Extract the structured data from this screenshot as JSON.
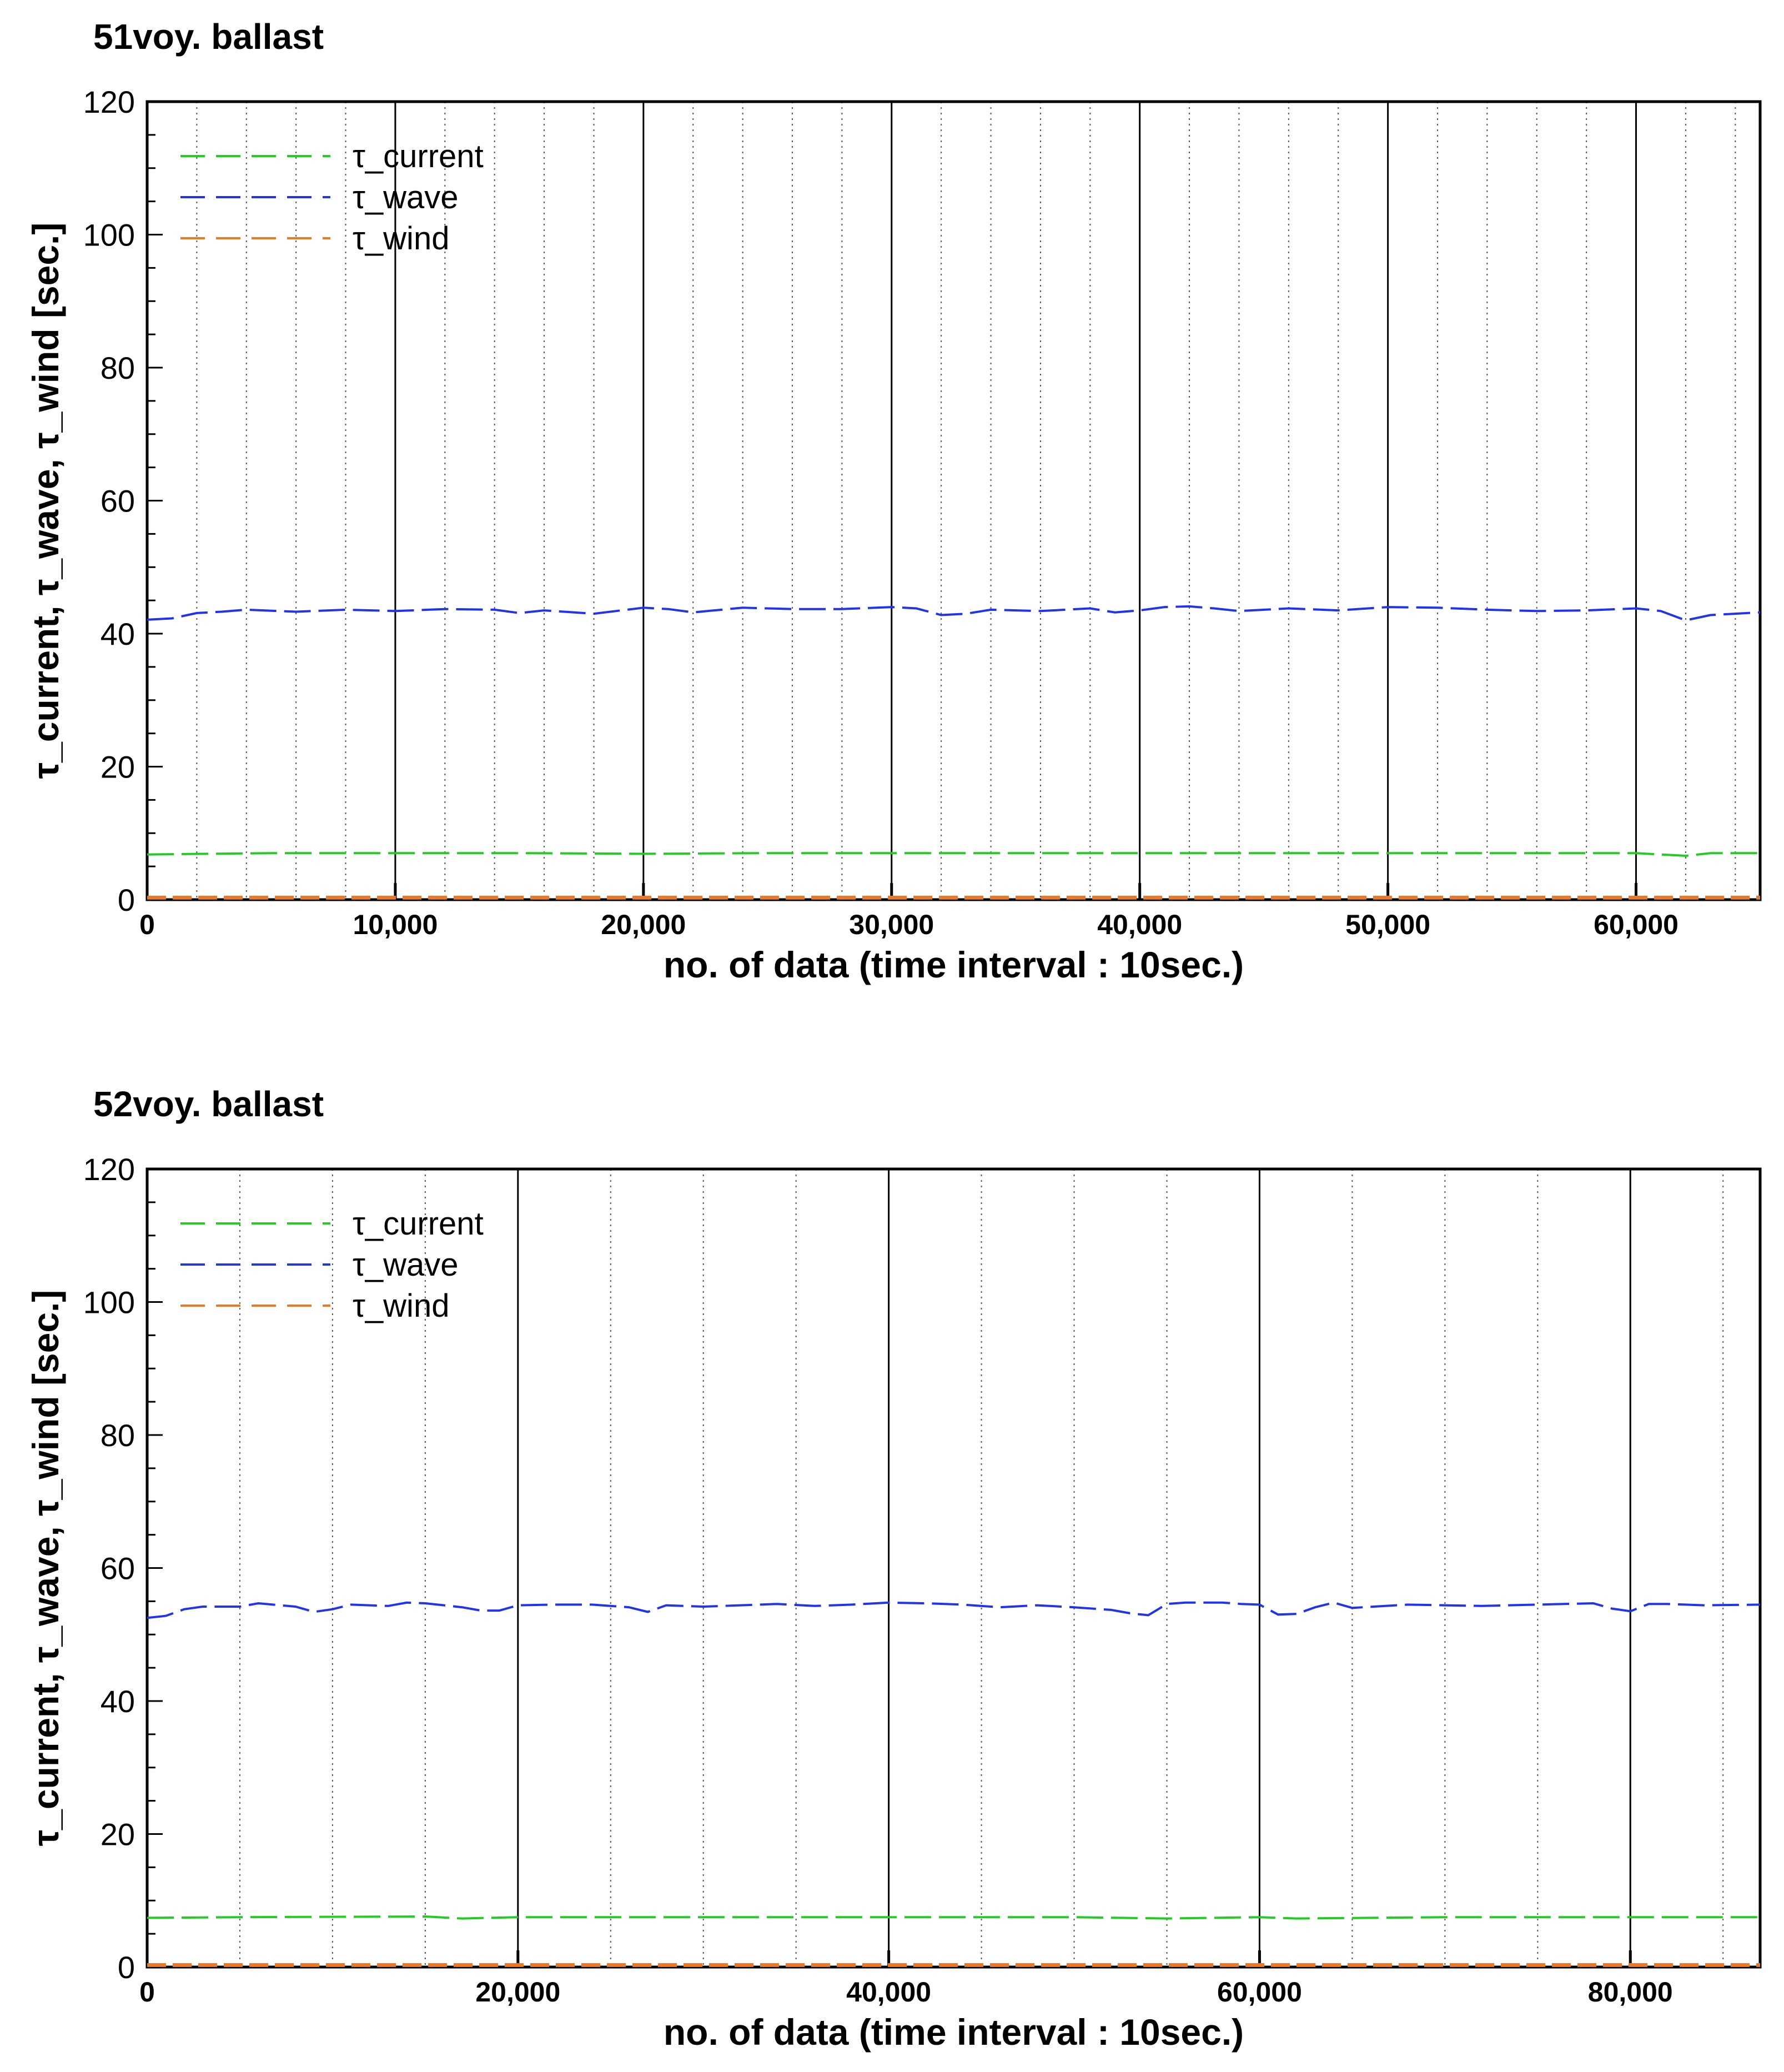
{
  "chart_data": [
    {
      "type": "line",
      "title": "51voy. ballast",
      "xlabel": "no. of data (time interval : 10sec.)",
      "ylabel": "τ_current, τ_wave, τ_wind [sec.]",
      "xlim": [
        0,
        65000
      ],
      "ylim": [
        0,
        120
      ],
      "x_major_ticks": [
        0,
        10000,
        20000,
        30000,
        40000,
        50000,
        60000
      ],
      "x_tick_labels": [
        "0",
        "10,000",
        "20,000",
        "30,000",
        "40,000",
        "50,000",
        "60,000"
      ],
      "x_minor_step": 2000,
      "y_ticks": [
        0,
        20,
        40,
        60,
        80,
        100,
        120
      ],
      "y_tick_labels": [
        "0",
        "20",
        "40",
        "60",
        "80",
        "100",
        "120"
      ],
      "y_minor_step": 5,
      "grid": "vertical",
      "legend_position": "top-left",
      "series": [
        {
          "name": "τ_current",
          "color": "#22cc22",
          "x": [
            0,
            5000,
            10000,
            15000,
            20000,
            25000,
            30000,
            35000,
            40000,
            45000,
            50000,
            55000,
            60000,
            62000,
            63000,
            65000
          ],
          "y": [
            6.8,
            7.0,
            7.0,
            7.0,
            6.9,
            7.0,
            7.0,
            7.0,
            7.0,
            7.0,
            7.0,
            7.0,
            7.0,
            6.6,
            7.0,
            7.0
          ]
        },
        {
          "name": "τ_wave",
          "color": "#2233ee",
          "x": [
            0,
            1000,
            2000,
            3000,
            4000,
            6000,
            8000,
            10000,
            12000,
            14000,
            15000,
            16000,
            18000,
            20000,
            21000,
            22000,
            24000,
            26000,
            28000,
            30000,
            31000,
            32000,
            33000,
            34000,
            36000,
            38000,
            39000,
            40000,
            41000,
            42000,
            43000,
            44000,
            46000,
            48000,
            50000,
            52000,
            54000,
            56000,
            58000,
            60000,
            61000,
            62000,
            63000,
            65000
          ],
          "y": [
            42.1,
            42.3,
            43.1,
            43.3,
            43.6,
            43.3,
            43.6,
            43.4,
            43.7,
            43.6,
            43.1,
            43.5,
            43.0,
            43.9,
            43.7,
            43.2,
            43.9,
            43.7,
            43.7,
            44.0,
            43.8,
            42.8,
            43.0,
            43.6,
            43.4,
            43.8,
            43.2,
            43.5,
            44.0,
            44.1,
            43.8,
            43.4,
            43.8,
            43.5,
            44.0,
            43.9,
            43.6,
            43.4,
            43.5,
            43.8,
            43.4,
            42.0,
            42.8,
            43.2
          ]
        },
        {
          "name": "τ_wind",
          "color": "#ee7722",
          "x": [
            0,
            65000
          ],
          "y": [
            0.3,
            0.3
          ]
        }
      ]
    },
    {
      "type": "line",
      "title": "52voy. ballast",
      "xlabel": "no. of data (time interval : 10sec.)",
      "ylabel": "τ_current, τ_wave, τ_wind [sec.]",
      "xlim": [
        0,
        87000
      ],
      "ylim": [
        0,
        120
      ],
      "x_major_ticks": [
        0,
        20000,
        40000,
        60000,
        80000
      ],
      "x_tick_labels": [
        "0",
        "20,000",
        "40,000",
        "60,000",
        "80,000"
      ],
      "x_minor_step": 5000,
      "y_ticks": [
        0,
        20,
        40,
        60,
        80,
        100,
        120
      ],
      "y_tick_labels": [
        "0",
        "20",
        "40",
        "60",
        "80",
        "100",
        "120"
      ],
      "y_minor_step": 5,
      "grid": "vertical",
      "legend_position": "top-left",
      "series": [
        {
          "name": "τ_current",
          "color": "#22cc22",
          "x": [
            0,
            5000,
            15000,
            17000,
            20000,
            30000,
            40000,
            50000,
            55000,
            60000,
            62000,
            70000,
            80000,
            87000
          ],
          "y": [
            7.4,
            7.5,
            7.6,
            7.3,
            7.5,
            7.5,
            7.5,
            7.5,
            7.3,
            7.5,
            7.3,
            7.5,
            7.5,
            7.5
          ],
          "name_note": ""
        },
        {
          "name": "τ_wave",
          "color": "#2233ee",
          "x": [
            0,
            1000,
            2000,
            3000,
            5000,
            6000,
            8000,
            9000,
            10000,
            11000,
            13000,
            14000,
            15000,
            17000,
            18000,
            19000,
            20000,
            22000,
            24000,
            26000,
            27000,
            28000,
            30000,
            34000,
            36000,
            38000,
            40000,
            42000,
            44000,
            46000,
            48000,
            50000,
            52000,
            53000,
            54000,
            55000,
            56000,
            58000,
            59000,
            60000,
            61000,
            62000,
            63000,
            64000,
            65000,
            68000,
            70000,
            72000,
            75000,
            78000,
            79000,
            80000,
            81000,
            82000,
            84000,
            87000
          ],
          "y": [
            52.5,
            52.8,
            53.8,
            54.2,
            54.2,
            54.7,
            54.2,
            53.4,
            53.8,
            54.5,
            54.3,
            54.8,
            54.7,
            54.1,
            53.6,
            53.6,
            54.4,
            54.5,
            54.5,
            54.1,
            53.4,
            54.4,
            54.2,
            54.6,
            54.3,
            54.5,
            54.8,
            54.7,
            54.5,
            54.1,
            54.4,
            54.1,
            53.7,
            53.2,
            52.9,
            54.6,
            54.8,
            54.8,
            54.6,
            54.5,
            53.0,
            53.1,
            54.1,
            54.8,
            54.0,
            54.5,
            54.4,
            54.3,
            54.5,
            54.7,
            53.9,
            53.5,
            54.6,
            54.6,
            54.4,
            54.5
          ]
        },
        {
          "name": "τ_wind",
          "color": "#ee7722",
          "x": [
            0,
            87000
          ],
          "y": [
            0.3,
            0.3
          ]
        }
      ]
    }
  ]
}
